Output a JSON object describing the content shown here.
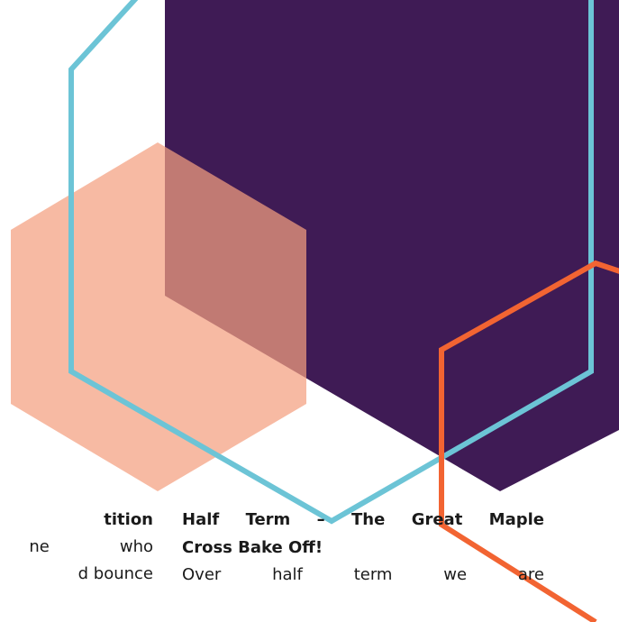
{
  "colors": {
    "purple": "#3f1b55",
    "blue_outline": "#6cc4d6",
    "peach": "#f4a07f",
    "orange_outline": "#f26432"
  },
  "left_column": {
    "heading_fragment": "tition",
    "line1_a": "ne",
    "line1_b": "who",
    "line2": "d bounce"
  },
  "right_column": {
    "heading": "Half Term – The Great Maple Cross Bake Off!",
    "heading_line1": "Half Term – The Great Maple",
    "heading_line2": "Cross Bake Off!",
    "body_words": [
      "Over",
      "half",
      "term",
      "we",
      "are"
    ]
  }
}
